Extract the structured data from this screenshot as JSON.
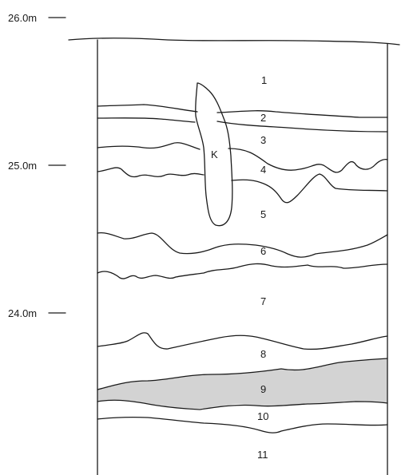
{
  "elevation_scale": [
    {
      "label": "26.0m"
    },
    {
      "label": "25.0m"
    },
    {
      "label": "24.0m"
    }
  ],
  "layers": [
    "1",
    "2",
    "3",
    "4",
    "5",
    "6",
    "7",
    "8",
    "9",
    "10",
    "11"
  ],
  "feature": {
    "label": "K"
  },
  "colors": {
    "line": "#1a1a1a",
    "layer_9_fill": "#d3d3d3",
    "background": "#ffffff"
  }
}
